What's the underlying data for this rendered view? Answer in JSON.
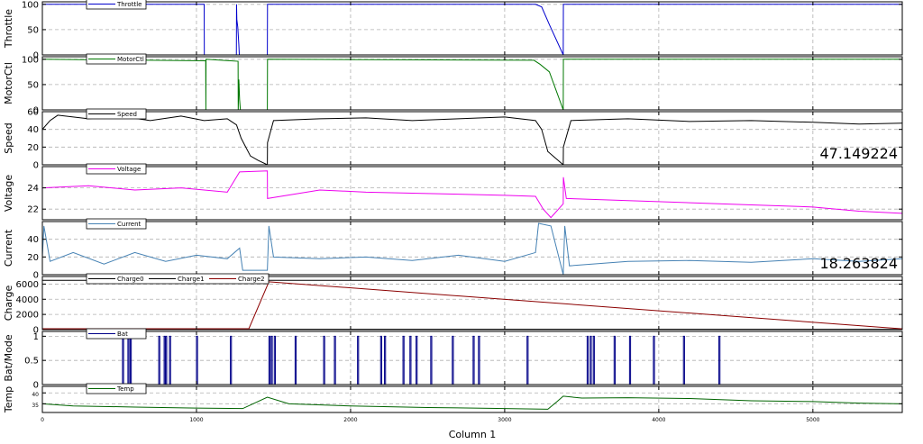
{
  "chart_data": {
    "type": "line",
    "x_axis": {
      "label": "Column 1",
      "range": [
        0,
        5580
      ],
      "ticks": [
        0,
        1000,
        2000,
        3000,
        4000,
        5000
      ],
      "tick_labels": [
        "0",
        "1000",
        "2000",
        "3000",
        "4000",
        "5000"
      ],
      "grid": true
    },
    "panels": [
      {
        "ylabel": "Throttle",
        "ylim": [
          0,
          105
        ],
        "yticks": [
          0,
          50,
          100
        ],
        "ytick_labels": [
          "0",
          "50",
          "100"
        ],
        "series": [
          {
            "name": "Throttle",
            "color": "#0000cc",
            "points": [
              [
                0,
                100
              ],
              [
                1050,
                100
              ],
              [
                1051,
                0
              ],
              [
                1259,
                0
              ],
              [
                1260,
                100
              ],
              [
                1262,
                70
              ],
              [
                1268,
                55
              ],
              [
                1275,
                20
              ],
              [
                1278,
                0
              ],
              [
                1460,
                0
              ],
              [
                1461,
                100
              ],
              [
                3200,
                100
              ],
              [
                3240,
                95
              ],
              [
                3290,
                60
              ],
              [
                3380,
                0
              ],
              [
                3381,
                100
              ],
              [
                5580,
                100
              ]
            ]
          }
        ]
      },
      {
        "ylabel": "MotorCtl",
        "ylim": [
          0,
          105
        ],
        "yticks": [
          0,
          50,
          100
        ],
        "ytick_labels": [
          "0",
          "50",
          "100"
        ],
        "series": [
          {
            "name": "MotorCtl",
            "color": "#007700",
            "points": [
              [
                0,
                100
              ],
              [
                1060,
                97
              ],
              [
                1061,
                0
              ],
              [
                1062,
                100
              ],
              [
                1270,
                96
              ],
              [
                1271,
                0
              ],
              [
                1275,
                60
              ],
              [
                1280,
                20
              ],
              [
                1285,
                0
              ],
              [
                1460,
                0
              ],
              [
                1461,
                100
              ],
              [
                3190,
                98
              ],
              [
                3230,
                90
              ],
              [
                3290,
                75
              ],
              [
                3380,
                0
              ],
              [
                3381,
                100
              ],
              [
                5580,
                100
              ]
            ]
          }
        ]
      },
      {
        "ylabel": "Speed",
        "ylim": [
          0,
          60
        ],
        "yticks": [
          0,
          20,
          40,
          60
        ],
        "ytick_labels": [
          "0",
          "20",
          "40",
          "60"
        ],
        "annotation": "47.149224",
        "series": [
          {
            "name": "Speed",
            "color": "#000000",
            "points": [
              [
                0,
                40
              ],
              [
                50,
                50
              ],
              [
                100,
                56
              ],
              [
                300,
                52
              ],
              [
                500,
                55
              ],
              [
                700,
                50
              ],
              [
                900,
                55
              ],
              [
                1050,
                50
              ],
              [
                1200,
                52
              ],
              [
                1260,
                45
              ],
              [
                1290,
                30
              ],
              [
                1350,
                10
              ],
              [
                1400,
                5
              ],
              [
                1460,
                0
              ],
              [
                1461,
                25
              ],
              [
                1500,
                50
              ],
              [
                1800,
                52
              ],
              [
                2100,
                53
              ],
              [
                2400,
                50
              ],
              [
                2700,
                52
              ],
              [
                3000,
                54
              ],
              [
                3200,
                50
              ],
              [
                3240,
                40
              ],
              [
                3280,
                15
              ],
              [
                3380,
                0
              ],
              [
                3381,
                20
              ],
              [
                3430,
                50
              ],
              [
                3800,
                52
              ],
              [
                4200,
                49
              ],
              [
                4600,
                50
              ],
              [
                5000,
                48
              ],
              [
                5300,
                46
              ],
              [
                5580,
                47
              ]
            ]
          }
        ]
      },
      {
        "ylabel": "Voltage",
        "ylim": [
          21,
          26
        ],
        "yticks": [
          22,
          24
        ],
        "ytick_labels": [
          "22",
          "24"
        ],
        "series": [
          {
            "name": "Voltage",
            "color": "#ee00ee",
            "points": [
              [
                0,
                24
              ],
              [
                300,
                24.2
              ],
              [
                600,
                23.8
              ],
              [
                900,
                24
              ],
              [
                1200,
                23.6
              ],
              [
                1280,
                25.5
              ],
              [
                1460,
                25.6
              ],
              [
                1461,
                23
              ],
              [
                1800,
                23.8
              ],
              [
                2100,
                23.6
              ],
              [
                2400,
                23.5
              ],
              [
                2700,
                23.4
              ],
              [
                3000,
                23.3
              ],
              [
                3200,
                23.2
              ],
              [
                3250,
                22
              ],
              [
                3300,
                21.2
              ],
              [
                3380,
                22.5
              ],
              [
                3381,
                25
              ],
              [
                3400,
                23
              ],
              [
                3800,
                22.8
              ],
              [
                4200,
                22.6
              ],
              [
                4600,
                22.4
              ],
              [
                5000,
                22.2
              ],
              [
                5300,
                21.8
              ],
              [
                5580,
                21.6
              ]
            ]
          }
        ]
      },
      {
        "ylabel": "Current",
        "ylim": [
          0,
          60
        ],
        "yticks": [
          0,
          20,
          40
        ],
        "ytick_labels": [
          "0",
          "20",
          "40"
        ],
        "annotation": "18.263824",
        "series": [
          {
            "name": "Current",
            "color": "#4682b4",
            "points": [
              [
                0,
                20
              ],
              [
                10,
                55
              ],
              [
                50,
                15
              ],
              [
                200,
                25
              ],
              [
                400,
                12
              ],
              [
                600,
                25
              ],
              [
                800,
                15
              ],
              [
                1000,
                22
              ],
              [
                1200,
                18
              ],
              [
                1280,
                30
              ],
              [
                1300,
                5
              ],
              [
                1460,
                5
              ],
              [
                1470,
                55
              ],
              [
                1500,
                20
              ],
              [
                1800,
                18
              ],
              [
                2100,
                20
              ],
              [
                2400,
                16
              ],
              [
                2700,
                22
              ],
              [
                3000,
                15
              ],
              [
                3200,
                25
              ],
              [
                3220,
                58
              ],
              [
                3300,
                55
              ],
              [
                3380,
                0
              ],
              [
                3390,
                55
              ],
              [
                3420,
                10
              ],
              [
                3800,
                15
              ],
              [
                4200,
                16
              ],
              [
                4600,
                14
              ],
              [
                5000,
                18
              ],
              [
                5300,
                15
              ],
              [
                5580,
                18
              ]
            ]
          }
        ]
      },
      {
        "ylabel": "Charge",
        "ylim": [
          0,
          7000
        ],
        "yticks": [
          0,
          2000,
          4000,
          6000
        ],
        "ytick_labels": [
          "0",
          "2000",
          "4000",
          "6000"
        ],
        "series": [
          {
            "name": "Charge0",
            "color": "#000000",
            "points": [
              [
                0,
                6500
              ],
              [
                5580,
                6500
              ]
            ]
          },
          {
            "name": "Charge1",
            "color": "#000000",
            "points": [
              [
                0,
                40
              ],
              [
                5580,
                40
              ]
            ]
          },
          {
            "name": "Charge2",
            "color": "#8b0000",
            "points": [
              [
                0,
                120
              ],
              [
                1340,
                120
              ],
              [
                1470,
                6300
              ],
              [
                5580,
                100
              ]
            ]
          }
        ]
      },
      {
        "ylabel": "Bat/Mode",
        "ylim": [
          0,
          1.1
        ],
        "yticks": [
          0,
          0.5,
          1
        ],
        "ytick_labels": [
          "0",
          "0.5",
          "1"
        ],
        "series": [
          {
            "name": "Bat",
            "color": "#000088",
            "pulses": [
              520,
              555,
              570,
              755,
              790,
              800,
              825,
              1000,
              1220,
              1470,
              1485,
              1505,
              1640,
              1825,
              1895,
              2045,
              2195,
              2220,
              2340,
              2385,
              2425,
              2520,
              2660,
              2795,
              2830,
              3145,
              3535,
              3555,
              3575,
              3710,
              3810,
              3965,
              4160,
              4390
            ]
          }
        ]
      },
      {
        "ylabel": "Temp",
        "ylim": [
          31,
          43
        ],
        "yticks": [
          35,
          40
        ],
        "ytick_labels": [
          "35",
          "40"
        ],
        "series": [
          {
            "name": "Temp",
            "color": "#006400",
            "points": [
              [
                0,
                35
              ],
              [
                200,
                34
              ],
              [
                600,
                33.5
              ],
              [
                1000,
                33
              ],
              [
                1300,
                32.8
              ],
              [
                1460,
                38
              ],
              [
                1600,
                35
              ],
              [
                2000,
                34
              ],
              [
                2500,
                33.3
              ],
              [
                3000,
                32.8
              ],
              [
                3280,
                32.5
              ],
              [
                3340,
                36
              ],
              [
                3380,
                38.5
              ],
              [
                3500,
                37.6
              ],
              [
                3800,
                37.8
              ],
              [
                4200,
                37.4
              ],
              [
                4600,
                36.4
              ],
              [
                5000,
                36
              ],
              [
                5300,
                35.3
              ],
              [
                5580,
                35
              ]
            ]
          }
        ]
      }
    ]
  }
}
